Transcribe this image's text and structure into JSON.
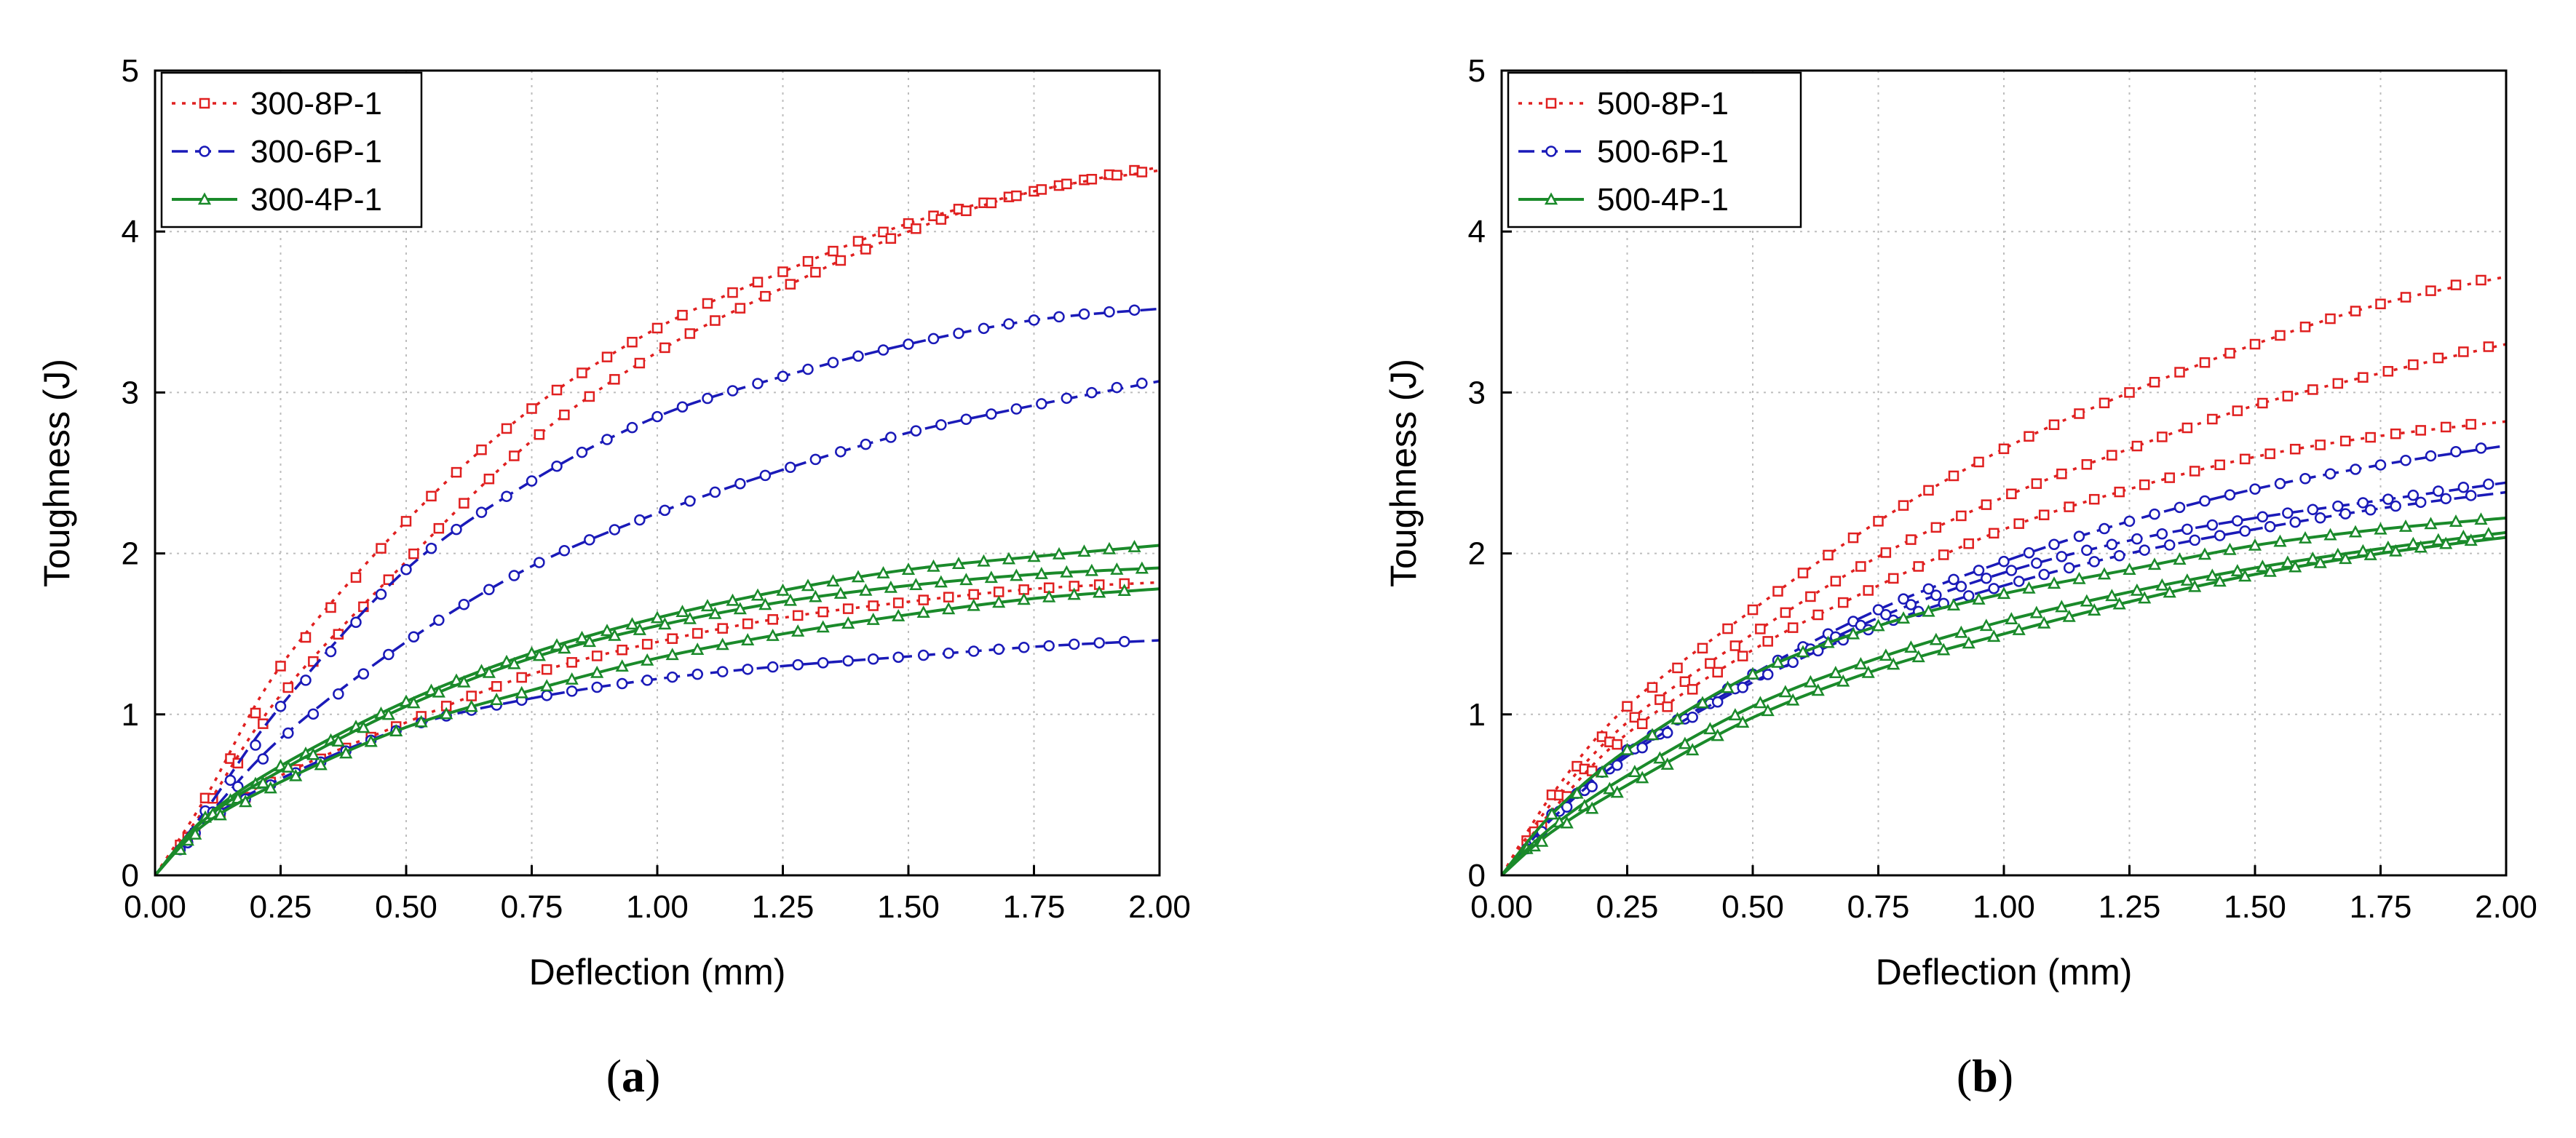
{
  "chart_data": [
    {
      "type": "line",
      "panel_label": "a",
      "title": "",
      "xlabel": "Deflection (mm)",
      "ylabel": "Toughness (J)",
      "xlim": [
        0,
        2.0
      ],
      "ylim": [
        0,
        5
      ],
      "xticks": [
        "0.00",
        "0.25",
        "0.50",
        "0.75",
        "1.00",
        "1.25",
        "1.50",
        "1.75",
        "2.00"
      ],
      "yticks": [
        "0",
        "1",
        "2",
        "3",
        "4",
        "5"
      ],
      "grid": true,
      "legend_position": "top-left",
      "legend": [
        {
          "name": "300-8P-1",
          "color": "#e02020",
          "dash": "dotted",
          "marker": "square"
        },
        {
          "name": "300-6P-1",
          "color": "#1a1ab8",
          "dash": "dashed",
          "marker": "circle"
        },
        {
          "name": "300-4P-1",
          "color": "#1a8a2a",
          "dash": "solid",
          "marker": "triangle"
        }
      ],
      "series": [
        {
          "name": "300-8P-1",
          "color": "#e02020",
          "dash": "dotted",
          "marker": "square",
          "x": [
            0,
            0.1,
            0.25,
            0.5,
            0.75,
            1.0,
            1.25,
            1.5,
            1.75,
            2.0
          ],
          "y": [
            0,
            0.48,
            1.3,
            2.2,
            2.9,
            3.4,
            3.75,
            4.05,
            4.25,
            4.4
          ]
        },
        {
          "name": "300-8P-1",
          "color": "#e02020",
          "dash": "dotted",
          "marker": "square",
          "x": [
            0,
            0.1,
            0.25,
            0.5,
            0.75,
            1.0,
            1.25,
            1.5,
            1.75,
            2.0
          ],
          "y": [
            0,
            0.42,
            1.12,
            1.95,
            2.7,
            3.25,
            3.65,
            4.0,
            4.25,
            4.38
          ]
        },
        {
          "name": "300-8P-1",
          "color": "#e02020",
          "dash": "dotted",
          "marker": "square",
          "x": [
            0,
            0.1,
            0.25,
            0.5,
            0.75,
            1.0,
            1.25,
            1.5,
            1.75,
            2.0
          ],
          "y": [
            0,
            0.33,
            0.62,
            0.95,
            1.25,
            1.45,
            1.6,
            1.7,
            1.78,
            1.82
          ]
        },
        {
          "name": "300-6P-1",
          "color": "#1a1ab8",
          "dash": "dashed",
          "marker": "circle",
          "x": [
            0,
            0.1,
            0.25,
            0.5,
            0.75,
            1.0,
            1.25,
            1.5,
            1.75,
            2.0
          ],
          "y": [
            0,
            0.4,
            1.05,
            1.9,
            2.45,
            2.85,
            3.1,
            3.3,
            3.45,
            3.52
          ]
        },
        {
          "name": "300-6P-1",
          "color": "#1a1ab8",
          "dash": "dashed",
          "marker": "circle",
          "x": [
            0,
            0.1,
            0.25,
            0.5,
            0.75,
            1.0,
            1.25,
            1.5,
            1.75,
            2.0
          ],
          "y": [
            0,
            0.35,
            0.85,
            1.45,
            1.92,
            2.25,
            2.52,
            2.75,
            2.92,
            3.07
          ]
        },
        {
          "name": "300-6P-1",
          "color": "#1a1ab8",
          "dash": "dashed",
          "marker": "circle",
          "x": [
            0,
            0.1,
            0.25,
            0.5,
            0.75,
            1.0,
            1.25,
            1.5,
            1.75,
            2.0
          ],
          "y": [
            0,
            0.33,
            0.6,
            0.92,
            1.1,
            1.22,
            1.3,
            1.36,
            1.42,
            1.46
          ]
        },
        {
          "name": "300-4P-1",
          "color": "#1a8a2a",
          "dash": "solid",
          "marker": "triangle",
          "x": [
            0,
            0.1,
            0.25,
            0.5,
            0.75,
            1.0,
            1.25,
            1.5,
            1.75,
            2.0
          ],
          "y": [
            0,
            0.36,
            0.68,
            1.08,
            1.38,
            1.6,
            1.77,
            1.9,
            1.98,
            2.05
          ]
        },
        {
          "name": "300-4P-1",
          "color": "#1a8a2a",
          "dash": "solid",
          "marker": "triangle",
          "x": [
            0,
            0.1,
            0.25,
            0.5,
            0.75,
            1.0,
            1.25,
            1.5,
            1.75,
            2.0
          ],
          "y": [
            0,
            0.35,
            0.65,
            1.05,
            1.35,
            1.55,
            1.7,
            1.8,
            1.87,
            1.91
          ]
        },
        {
          "name": "300-4P-1",
          "color": "#1a8a2a",
          "dash": "solid",
          "marker": "triangle",
          "x": [
            0,
            0.1,
            0.25,
            0.5,
            0.75,
            1.0,
            1.25,
            1.5,
            1.75,
            2.0
          ],
          "y": [
            0,
            0.32,
            0.58,
            0.92,
            1.15,
            1.35,
            1.5,
            1.62,
            1.72,
            1.78
          ]
        }
      ]
    },
    {
      "type": "line",
      "panel_label": "b",
      "title": "",
      "xlabel": "Deflection (mm)",
      "ylabel": "Toughness (J)",
      "xlim": [
        0,
        2.0
      ],
      "ylim": [
        0,
        5
      ],
      "xticks": [
        "0.00",
        "0.25",
        "0.50",
        "0.75",
        "1.00",
        "1.25",
        "1.50",
        "1.75",
        "2.00"
      ],
      "yticks": [
        "0",
        "1",
        "2",
        "3",
        "4",
        "5"
      ],
      "grid": true,
      "legend_position": "top-left",
      "legend": [
        {
          "name": "500-8P-1",
          "color": "#e02020",
          "dash": "dotted",
          "marker": "square"
        },
        {
          "name": "500-6P-1",
          "color": "#1a1ab8",
          "dash": "dashed",
          "marker": "circle"
        },
        {
          "name": "500-4P-1",
          "color": "#1a8a2a",
          "dash": "solid",
          "marker": "triangle"
        }
      ],
      "series": [
        {
          "name": "500-8P-1",
          "color": "#e02020",
          "dash": "dotted",
          "marker": "square",
          "x": [
            0,
            0.1,
            0.25,
            0.5,
            0.75,
            1.0,
            1.25,
            1.5,
            1.75,
            2.0
          ],
          "y": [
            0,
            0.5,
            1.05,
            1.65,
            2.2,
            2.65,
            3.0,
            3.3,
            3.55,
            3.72
          ]
        },
        {
          "name": "500-8P-1",
          "color": "#e02020",
          "dash": "dotted",
          "marker": "square",
          "x": [
            0,
            0.1,
            0.25,
            0.5,
            0.75,
            1.0,
            1.25,
            1.5,
            1.75,
            2.0
          ],
          "y": [
            0,
            0.45,
            0.95,
            1.5,
            1.98,
            2.35,
            2.65,
            2.92,
            3.12,
            3.3
          ]
        },
        {
          "name": "500-8P-1",
          "color": "#e02020",
          "dash": "dotted",
          "marker": "square",
          "x": [
            0,
            0.1,
            0.25,
            0.5,
            0.75,
            1.0,
            1.25,
            1.5,
            1.75,
            2.0
          ],
          "y": [
            0,
            0.4,
            0.88,
            1.4,
            1.8,
            2.15,
            2.4,
            2.6,
            2.73,
            2.82
          ]
        },
        {
          "name": "500-6P-1",
          "color": "#1a1ab8",
          "dash": "dashed",
          "marker": "circle",
          "x": [
            0,
            0.1,
            0.25,
            0.5,
            0.75,
            1.0,
            1.25,
            1.5,
            1.75,
            2.0
          ],
          "y": [
            0,
            0.38,
            0.78,
            1.25,
            1.65,
            1.95,
            2.2,
            2.4,
            2.55,
            2.67
          ]
        },
        {
          "name": "500-6P-1",
          "color": "#1a1ab8",
          "dash": "dashed",
          "marker": "circle",
          "x": [
            0,
            0.1,
            0.25,
            0.5,
            0.75,
            1.0,
            1.25,
            1.5,
            1.75,
            2.0
          ],
          "y": [
            0,
            0.36,
            0.76,
            1.22,
            1.6,
            1.88,
            2.08,
            2.22,
            2.33,
            2.44
          ]
        },
        {
          "name": "500-6P-1",
          "color": "#1a1ab8",
          "dash": "dashed",
          "marker": "circle",
          "x": [
            0,
            0.1,
            0.25,
            0.5,
            0.75,
            1.0,
            1.25,
            1.5,
            1.75,
            2.0
          ],
          "y": [
            0,
            0.35,
            0.74,
            1.2,
            1.55,
            1.8,
            2.0,
            2.15,
            2.28,
            2.38
          ]
        },
        {
          "name": "500-4P-1",
          "color": "#1a8a2a",
          "dash": "solid",
          "marker": "triangle",
          "x": [
            0,
            0.1,
            0.25,
            0.5,
            0.75,
            1.0,
            1.25,
            1.5,
            1.75,
            2.0
          ],
          "y": [
            0,
            0.38,
            0.78,
            1.25,
            1.55,
            1.75,
            1.9,
            2.05,
            2.15,
            2.22
          ]
        },
        {
          "name": "500-4P-1",
          "color": "#1a8a2a",
          "dash": "solid",
          "marker": "triangle",
          "x": [
            0,
            0.1,
            0.25,
            0.5,
            0.75,
            1.0,
            1.25,
            1.5,
            1.75,
            2.0
          ],
          "y": [
            0,
            0.3,
            0.62,
            1.05,
            1.35,
            1.58,
            1.76,
            1.91,
            2.03,
            2.13
          ]
        },
        {
          "name": "500-4P-1",
          "color": "#1a8a2a",
          "dash": "solid",
          "marker": "triangle",
          "x": [
            0,
            0.1,
            0.25,
            0.5,
            0.75,
            1.0,
            1.25,
            1.5,
            1.75,
            2.0
          ],
          "y": [
            0,
            0.27,
            0.56,
            0.98,
            1.28,
            1.5,
            1.7,
            1.87,
            2.0,
            2.1
          ]
        }
      ]
    }
  ]
}
